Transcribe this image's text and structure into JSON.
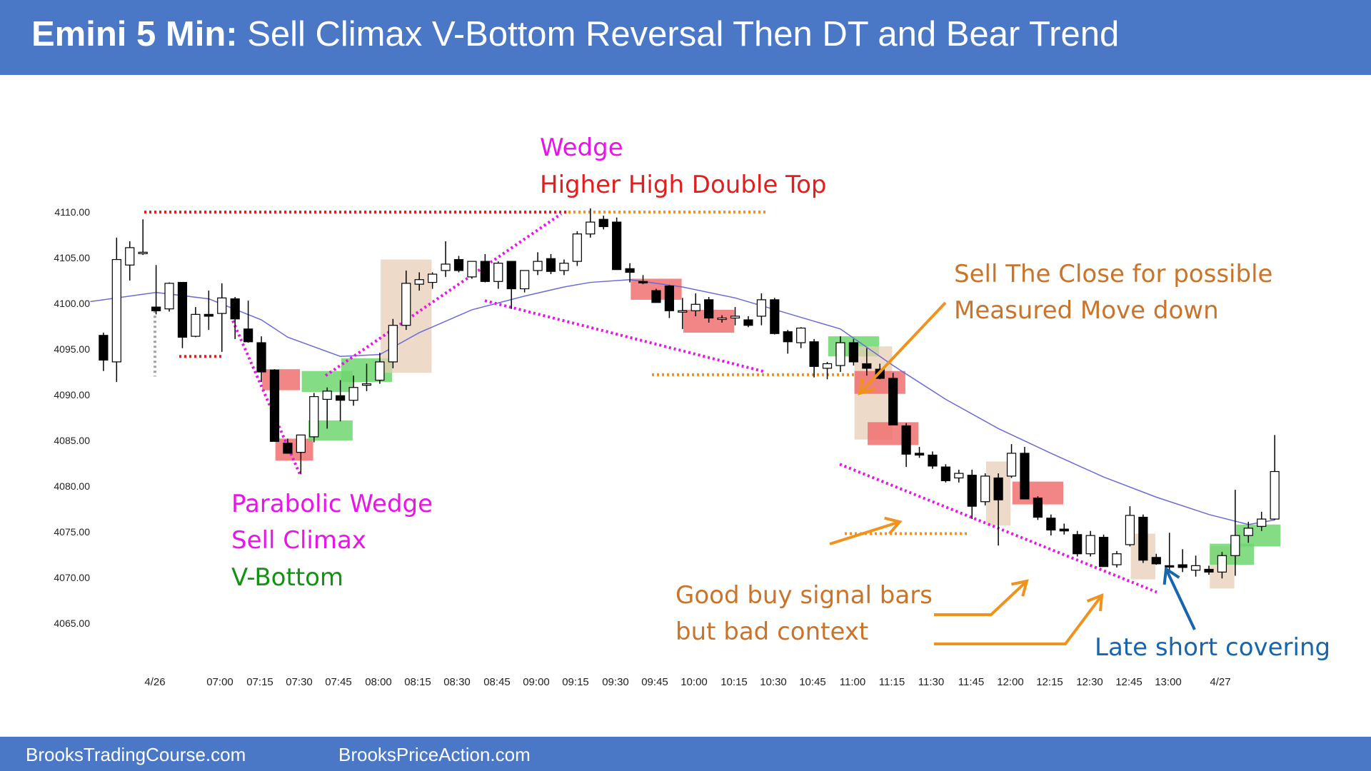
{
  "header": {
    "title_bold": "Emini 5 Min:",
    "title_rest": " Sell Climax V-Bottom Reversal Then DT and Bear Trend",
    "bg_color": "#4a78c6"
  },
  "footer": {
    "left_link": "BrooksTradingCourse.com",
    "right_link": "BrooksPriceAction.com"
  },
  "chart_data": {
    "type": "candlestick",
    "title": "Emini 5 Min: Sell Climax V-Bottom Reversal Then DT and Bear Trend",
    "xlabel": "",
    "ylabel": "",
    "ylim": [
      4065,
      4110
    ],
    "y_ticks": [
      "4110.00",
      "4105.00",
      "4100.00",
      "4095.00",
      "4090.00",
      "4085.00",
      "4080.00",
      "4075.00",
      "4070.00",
      "4065.00"
    ],
    "x_ticks": [
      "4/26",
      "07:00",
      "07:15",
      "07:30",
      "07:45",
      "08:00",
      "08:15",
      "08:30",
      "08:45",
      "09:00",
      "09:15",
      "09:30",
      "09:45",
      "10:00",
      "10:15",
      "10:30",
      "10:45",
      "11:00",
      "11:15",
      "11:30",
      "11:45",
      "12:00",
      "12:15",
      "12:30",
      "12:45",
      "13:00",
      "4/27"
    ],
    "grid": false,
    "colors": {
      "bull": "#ffffff",
      "bear": "#000000",
      "ema": "#6b6bd6",
      "red_box": "#f07070",
      "green_box": "#6fd66f",
      "tan_box": "#e8cdb5"
    },
    "candles": [
      {
        "i": -4,
        "o": 4096.5,
        "h": 4096.8,
        "l": 4092.6,
        "c": 4093.8
      },
      {
        "i": -3,
        "o": 4093.6,
        "h": 4107.2,
        "l": 4091.4,
        "c": 4104.8
      },
      {
        "i": -2,
        "o": 4104.2,
        "h": 4106.8,
        "l": 4102.5,
        "c": 4106.1
      },
      {
        "i": -1,
        "o": 4105.6,
        "h": 4109.2,
        "l": 4105.3,
        "c": 4105.6
      },
      {
        "i": 0,
        "o": 4099.6,
        "h": 4104.2,
        "l": 4098.8,
        "c": 4099.2
      },
      {
        "i": 1,
        "o": 4099.4,
        "h": 4102.3,
        "l": 4099.1,
        "c": 4102.2
      },
      {
        "i": 2,
        "o": 4102.3,
        "h": 4102.3,
        "l": 4095.1,
        "c": 4096.3
      },
      {
        "i": 3,
        "o": 4096.4,
        "h": 4099.6,
        "l": 4096.3,
        "c": 4098.8
      },
      {
        "i": 4,
        "o": 4098.8,
        "h": 4101.4,
        "l": 4097.1,
        "c": 4098.6
      },
      {
        "i": 5,
        "o": 4098.9,
        "h": 4102.2,
        "l": 4094.7,
        "c": 4100.6
      },
      {
        "i": 6,
        "o": 4100.5,
        "h": 4100.7,
        "l": 4096.1,
        "c": 4098.3
      },
      {
        "i": 7,
        "o": 4097.2,
        "h": 4100.3,
        "l": 4095.7,
        "c": 4095.8
      },
      {
        "i": 8,
        "o": 4095.7,
        "h": 4096.4,
        "l": 4091.4,
        "c": 4092.5
      },
      {
        "i": 9,
        "o": 4092.7,
        "h": 4092.8,
        "l": 4084.9,
        "c": 4084.9
      },
      {
        "i": 10,
        "o": 4084.7,
        "h": 4085.2,
        "l": 4083.6,
        "c": 4083.6
      },
      {
        "i": 11,
        "o": 4083.7,
        "h": 4085.6,
        "l": 4081.3,
        "c": 4085.6
      },
      {
        "i": 12,
        "o": 4085.4,
        "h": 4090.2,
        "l": 4084.8,
        "c": 4089.8
      },
      {
        "i": 13,
        "o": 4089.5,
        "h": 4090.8,
        "l": 4086.3,
        "c": 4090.4
      },
      {
        "i": 14,
        "o": 4089.9,
        "h": 4091.6,
        "l": 4087.1,
        "c": 4089.4
      },
      {
        "i": 15,
        "o": 4089.4,
        "h": 4092.1,
        "l": 4088.8,
        "c": 4090.8
      },
      {
        "i": 16,
        "o": 4091.1,
        "h": 4093.4,
        "l": 4090.4,
        "c": 4091.2
      },
      {
        "i": 17,
        "o": 4091.6,
        "h": 4094.6,
        "l": 4091.2,
        "c": 4093.6
      },
      {
        "i": 18,
        "o": 4093.6,
        "h": 4098.3,
        "l": 4092.9,
        "c": 4097.6
      },
      {
        "i": 19,
        "o": 4097.6,
        "h": 4103.6,
        "l": 4097.1,
        "c": 4102.2
      },
      {
        "i": 20,
        "o": 4102.1,
        "h": 4103.4,
        "l": 4101.4,
        "c": 4102.6
      },
      {
        "i": 21,
        "o": 4102.3,
        "h": 4103.4,
        "l": 4101.6,
        "c": 4103.2
      },
      {
        "i": 22,
        "o": 4103.6,
        "h": 4106.8,
        "l": 4102.9,
        "c": 4104.3
      },
      {
        "i": 23,
        "o": 4104.8,
        "h": 4105.2,
        "l": 4103.4,
        "c": 4103.6
      },
      {
        "i": 24,
        "o": 4102.9,
        "h": 4104.5,
        "l": 4102.7,
        "c": 4104.6
      },
      {
        "i": 25,
        "o": 4104.6,
        "h": 4105.4,
        "l": 4102.3,
        "c": 4102.4
      },
      {
        "i": 26,
        "o": 4102.4,
        "h": 4104.6,
        "l": 4101.6,
        "c": 4104.4
      },
      {
        "i": 27,
        "o": 4104.6,
        "h": 4104.6,
        "l": 4099.4,
        "c": 4101.6
      },
      {
        "i": 28,
        "o": 4101.6,
        "h": 4103.6,
        "l": 4101.2,
        "c": 4103.6
      },
      {
        "i": 29,
        "o": 4103.6,
        "h": 4105.6,
        "l": 4103.1,
        "c": 4104.6
      },
      {
        "i": 30,
        "o": 4104.9,
        "h": 4105.4,
        "l": 4103.2,
        "c": 4103.5
      },
      {
        "i": 31,
        "o": 4103.6,
        "h": 4104.8,
        "l": 4103.1,
        "c": 4104.4
      },
      {
        "i": 32,
        "o": 4104.6,
        "h": 4107.9,
        "l": 4104.1,
        "c": 4107.6
      },
      {
        "i": 33,
        "o": 4107.6,
        "h": 4110.4,
        "l": 4107.2,
        "c": 4108.9
      },
      {
        "i": 34,
        "o": 4109.2,
        "h": 4109.6,
        "l": 4108.1,
        "c": 4108.4
      },
      {
        "i": 35,
        "o": 4108.9,
        "h": 4109.4,
        "l": 4103.7,
        "c": 4103.7
      },
      {
        "i": 36,
        "o": 4103.8,
        "h": 4104.4,
        "l": 4102.3,
        "c": 4103.4
      },
      {
        "i": 37,
        "o": 4102.4,
        "h": 4103.1,
        "l": 4102.1,
        "c": 4102.3
      },
      {
        "i": 38,
        "o": 4101.4,
        "h": 4101.6,
        "l": 4100.1,
        "c": 4100.1
      },
      {
        "i": 39,
        "o": 4101.9,
        "h": 4102.0,
        "l": 4098.4,
        "c": 4099.2
      },
      {
        "i": 40,
        "o": 4099.2,
        "h": 4100.6,
        "l": 4097.2,
        "c": 4099.2
      },
      {
        "i": 41,
        "o": 4099.2,
        "h": 4101.1,
        "l": 4098.6,
        "c": 4099.9
      },
      {
        "i": 42,
        "o": 4100.4,
        "h": 4100.7,
        "l": 4097.9,
        "c": 4098.4
      },
      {
        "i": 43,
        "o": 4098.4,
        "h": 4098.7,
        "l": 4097.9,
        "c": 4098.4
      },
      {
        "i": 44,
        "o": 4098.4,
        "h": 4099.6,
        "l": 4097.6,
        "c": 4098.6
      },
      {
        "i": 45,
        "o": 4098.2,
        "h": 4098.6,
        "l": 4097.4,
        "c": 4097.6
      },
      {
        "i": 46,
        "o": 4098.6,
        "h": 4101.1,
        "l": 4097.6,
        "c": 4100.4
      },
      {
        "i": 47,
        "o": 4100.4,
        "h": 4100.6,
        "l": 4096.6,
        "c": 4096.7
      },
      {
        "i": 48,
        "o": 4096.9,
        "h": 4097.1,
        "l": 4094.5,
        "c": 4095.8
      },
      {
        "i": 49,
        "o": 4095.7,
        "h": 4097.4,
        "l": 4095.1,
        "c": 4097.3
      },
      {
        "i": 50,
        "o": 4095.8,
        "h": 4096.1,
        "l": 4091.9,
        "c": 4093.1
      },
      {
        "i": 51,
        "o": 4092.9,
        "h": 4093.6,
        "l": 4091.7,
        "c": 4093.4
      },
      {
        "i": 52,
        "o": 4093.2,
        "h": 4096.4,
        "l": 4092.5,
        "c": 4095.7
      },
      {
        "i": 53,
        "o": 4095.7,
        "h": 4096.1,
        "l": 4093.2,
        "c": 4093.6
      },
      {
        "i": 54,
        "o": 4093.4,
        "h": 4095.1,
        "l": 4092.1,
        "c": 4092.9
      },
      {
        "i": 55,
        "o": 4092.8,
        "h": 4093.4,
        "l": 4091.7,
        "c": 4091.8
      },
      {
        "i": 56,
        "o": 4091.8,
        "h": 4092.4,
        "l": 4086.7,
        "c": 4086.7
      },
      {
        "i": 57,
        "o": 4086.6,
        "h": 4086.9,
        "l": 4082.1,
        "c": 4083.5
      },
      {
        "i": 58,
        "o": 4083.6,
        "h": 4084.3,
        "l": 4083.1,
        "c": 4083.4
      },
      {
        "i": 59,
        "o": 4083.4,
        "h": 4083.8,
        "l": 4081.9,
        "c": 4082.2
      },
      {
        "i": 60,
        "o": 4082.1,
        "h": 4082.4,
        "l": 4080.4,
        "c": 4080.6
      },
      {
        "i": 61,
        "o": 4080.9,
        "h": 4081.8,
        "l": 4080.4,
        "c": 4081.4
      },
      {
        "i": 62,
        "o": 4081.2,
        "h": 4081.8,
        "l": 4076.4,
        "c": 4077.8
      },
      {
        "i": 63,
        "o": 4078.3,
        "h": 4081.4,
        "l": 4077.9,
        "c": 4081.1
      },
      {
        "i": 64,
        "o": 4080.9,
        "h": 4081.4,
        "l": 4073.5,
        "c": 4078.5
      },
      {
        "i": 65,
        "o": 4081.1,
        "h": 4084.6,
        "l": 4080.9,
        "c": 4083.6
      },
      {
        "i": 66,
        "o": 4083.6,
        "h": 4084.3,
        "l": 4078.6,
        "c": 4078.6
      },
      {
        "i": 67,
        "o": 4078.7,
        "h": 4078.9,
        "l": 4076.3,
        "c": 4076.6
      },
      {
        "i": 68,
        "o": 4076.5,
        "h": 4076.9,
        "l": 4074.6,
        "c": 4075.2
      },
      {
        "i": 69,
        "o": 4075.3,
        "h": 4075.9,
        "l": 4074.7,
        "c": 4075.1
      },
      {
        "i": 70,
        "o": 4074.7,
        "h": 4075.1,
        "l": 4072.3,
        "c": 4072.6
      },
      {
        "i": 71,
        "o": 4072.6,
        "h": 4075.1,
        "l": 4072.3,
        "c": 4074.6
      },
      {
        "i": 72,
        "o": 4074.4,
        "h": 4074.7,
        "l": 4071.2,
        "c": 4071.2
      },
      {
        "i": 73,
        "o": 4071.4,
        "h": 4072.9,
        "l": 4071.1,
        "c": 4072.6
      },
      {
        "i": 74,
        "o": 4073.6,
        "h": 4077.8,
        "l": 4073.4,
        "c": 4076.8
      },
      {
        "i": 75,
        "o": 4076.6,
        "h": 4076.9,
        "l": 4071.6,
        "c": 4071.9
      },
      {
        "i": 76,
        "o": 4072.2,
        "h": 4072.6,
        "l": 4071.4,
        "c": 4071.5
      },
      {
        "i": 77,
        "o": 4071.3,
        "h": 4074.9,
        "l": 4070.8,
        "c": 4071.2
      },
      {
        "i": 78,
        "o": 4071.4,
        "h": 4073.1,
        "l": 4070.6,
        "c": 4071.1
      },
      {
        "i": 79,
        "o": 4070.8,
        "h": 4072.4,
        "l": 4070.1,
        "c": 4071.3
      },
      {
        "i": 80,
        "o": 4070.9,
        "h": 4071.3,
        "l": 4070.3,
        "c": 4070.6
      },
      {
        "i": 81,
        "o": 4070.6,
        "h": 4072.8,
        "l": 4069.9,
        "c": 4072.4
      },
      {
        "i": 82,
        "o": 4072.4,
        "h": 4079.6,
        "l": 4070.2,
        "c": 4074.6
      },
      {
        "i": 83,
        "o": 4074.6,
        "h": 4076.1,
        "l": 4073.8,
        "c": 4075.4
      },
      {
        "i": 84,
        "o": 4075.6,
        "h": 4077.2,
        "l": 4075.1,
        "c": 4076.4
      },
      {
        "i": 85,
        "o": 4076.4,
        "h": 4085.6,
        "l": 4076.3,
        "c": 4081.6
      }
    ],
    "ema": [
      [
        -5,
        4100.2
      ],
      [
        0,
        4101.2
      ],
      [
        4,
        4100.5
      ],
      [
        8,
        4098.2
      ],
      [
        10,
        4096.3
      ],
      [
        14,
        4094.2
      ],
      [
        17,
        4094.4
      ],
      [
        20,
        4096.8
      ],
      [
        24,
        4099.3
      ],
      [
        28,
        4100.8
      ],
      [
        31,
        4101.8
      ],
      [
        33,
        4102.3
      ],
      [
        36,
        4102.6
      ],
      [
        40,
        4101.8
      ],
      [
        44,
        4100.6
      ],
      [
        48,
        4098.9
      ],
      [
        52,
        4097.2
      ],
      [
        56,
        4093.2
      ],
      [
        60,
        4089.5
      ],
      [
        64,
        4086.3
      ],
      [
        68,
        4083.6
      ],
      [
        72,
        4081.0
      ],
      [
        76,
        4078.8
      ],
      [
        80,
        4076.9
      ],
      [
        83,
        4075.8
      ],
      [
        85,
        4076.3
      ]
    ],
    "annotations": [
      {
        "lines": [
          "Wedge"
        ],
        "color": "#e815e8"
      },
      {
        "lines": [
          "Higher High Double Top"
        ],
        "color": "#e21e1e"
      },
      {
        "lines": [
          "Sell The Close for possible",
          "Measured Move down"
        ],
        "color": "#c8742b"
      },
      {
        "lines": [
          "Parabolic Wedge",
          "Sell Climax"
        ],
        "color": "#e815e8"
      },
      {
        "lines": [
          "V-Bottom"
        ],
        "color": "#119411"
      },
      {
        "lines": [
          "Good buy signal bars",
          "but bad context"
        ],
        "color": "#c8742b"
      },
      {
        "lines": [
          "Late short covering"
        ],
        "color": "#1765ad"
      }
    ]
  }
}
